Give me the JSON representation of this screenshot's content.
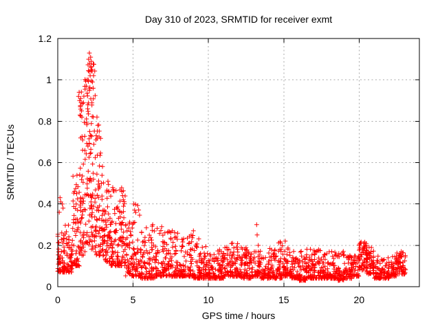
{
  "title": "Day 310 of 2023, SRMTID for receiver exmt",
  "colors": {
    "marker": "#ff0000",
    "grid": "#a8a8a8",
    "axis": "#000000",
    "background": "#ffffff"
  },
  "chart_data": {
    "type": "scatter",
    "title": "Day 310 of 2023, SRMTID for receiver exmt",
    "xlabel": "GPS time / hours",
    "ylabel": "SRMTID / TECUs",
    "xlim": [
      0,
      24
    ],
    "ylim": [
      0,
      1.2
    ],
    "grid": true,
    "legend": "none",
    "marker": {
      "shape": "plus",
      "color": "#ff0000",
      "size": 7
    },
    "xticks": [
      {
        "v": 0,
        "label": "0"
      },
      {
        "v": 5,
        "label": "5"
      },
      {
        "v": 10,
        "label": "10"
      },
      {
        "v": 15,
        "label": "15"
      },
      {
        "v": 20,
        "label": "20"
      }
    ],
    "yticks": [
      {
        "v": 0,
        "label": "0"
      },
      {
        "v": 0.2,
        "label": "0.2"
      },
      {
        "v": 0.4,
        "label": "0.4"
      },
      {
        "v": 0.6,
        "label": "0.6"
      },
      {
        "v": 0.8,
        "label": "0.8"
      },
      {
        "v": 1.0,
        "label": "1"
      },
      {
        "v": 1.2,
        "label": "1.2"
      }
    ],
    "data_extent": {
      "x_start": 0.0,
      "x_end": 23.1,
      "y_min": 0.03,
      "y_max": 1.13,
      "peak_x": 2.1
    },
    "seed": 310,
    "bins_format": [
      "x_start_hour",
      "x_end_hour",
      "point_count",
      "y_min_tecu",
      "y_max_tecu",
      "low_bias_power"
    ],
    "bins": [
      [
        0.0,
        0.5,
        60,
        0.07,
        0.28,
        2.0
      ],
      [
        0.5,
        1.0,
        55,
        0.07,
        0.3,
        2.0
      ],
      [
        1.0,
        1.5,
        60,
        0.1,
        0.55,
        1.7
      ],
      [
        1.5,
        2.0,
        80,
        0.15,
        1.02,
        1.25
      ],
      [
        2.0,
        2.5,
        90,
        0.18,
        1.08,
        1.25
      ],
      [
        2.5,
        3.0,
        65,
        0.15,
        0.8,
        1.6
      ],
      [
        3.0,
        3.5,
        60,
        0.12,
        0.55,
        1.7
      ],
      [
        3.5,
        4.0,
        60,
        0.1,
        0.5,
        1.8
      ],
      [
        4.0,
        4.5,
        55,
        0.1,
        0.5,
        1.9
      ],
      [
        4.5,
        5.0,
        50,
        0.05,
        0.32,
        2.0
      ],
      [
        5.0,
        5.5,
        46,
        0.05,
        0.4,
        2.3
      ],
      [
        5.5,
        6.0,
        46,
        0.04,
        0.3,
        2.4
      ],
      [
        6.0,
        6.5,
        46,
        0.04,
        0.3,
        2.4
      ],
      [
        6.5,
        7.0,
        46,
        0.05,
        0.3,
        2.4
      ],
      [
        7.0,
        7.5,
        46,
        0.05,
        0.27,
        2.4
      ],
      [
        7.5,
        8.0,
        46,
        0.05,
        0.27,
        2.4
      ],
      [
        8.0,
        8.5,
        46,
        0.05,
        0.26,
        2.4
      ],
      [
        8.5,
        9.0,
        46,
        0.05,
        0.26,
        2.4
      ],
      [
        9.0,
        9.5,
        46,
        0.04,
        0.24,
        2.4
      ],
      [
        9.5,
        10.0,
        46,
        0.04,
        0.2,
        2.4
      ],
      [
        10.0,
        10.5,
        46,
        0.04,
        0.16,
        2.2
      ],
      [
        10.5,
        11.0,
        46,
        0.04,
        0.18,
        2.2
      ],
      [
        11.0,
        11.5,
        46,
        0.05,
        0.2,
        2.2
      ],
      [
        11.5,
        12.0,
        46,
        0.05,
        0.22,
        2.2
      ],
      [
        12.0,
        12.5,
        46,
        0.04,
        0.19,
        2.2
      ],
      [
        12.5,
        13.0,
        46,
        0.04,
        0.18,
        2.2
      ],
      [
        13.0,
        13.5,
        46,
        0.05,
        0.2,
        2.2
      ],
      [
        13.5,
        14.0,
        46,
        0.04,
        0.18,
        2.2
      ],
      [
        14.0,
        14.5,
        46,
        0.04,
        0.2,
        2.2
      ],
      [
        14.5,
        15.0,
        46,
        0.04,
        0.22,
        2.1
      ],
      [
        15.0,
        15.5,
        46,
        0.05,
        0.21,
        2.1
      ],
      [
        15.5,
        16.0,
        46,
        0.04,
        0.18,
        2.2
      ],
      [
        16.0,
        16.5,
        46,
        0.03,
        0.18,
        2.2
      ],
      [
        16.5,
        17.0,
        46,
        0.04,
        0.19,
        2.2
      ],
      [
        17.0,
        17.5,
        46,
        0.04,
        0.18,
        2.2
      ],
      [
        17.5,
        18.0,
        46,
        0.04,
        0.16,
        2.2
      ],
      [
        18.0,
        18.5,
        46,
        0.04,
        0.17,
        2.2
      ],
      [
        18.5,
        19.0,
        46,
        0.03,
        0.19,
        2.2
      ],
      [
        19.0,
        19.5,
        46,
        0.04,
        0.16,
        2.2
      ],
      [
        19.5,
        20.0,
        46,
        0.05,
        0.15,
        2.0
      ],
      [
        20.0,
        20.5,
        52,
        0.08,
        0.22,
        1.5
      ],
      [
        20.5,
        21.0,
        52,
        0.06,
        0.2,
        1.7
      ],
      [
        21.0,
        21.5,
        46,
        0.04,
        0.15,
        2.2
      ],
      [
        21.5,
        22.0,
        46,
        0.04,
        0.14,
        2.2
      ],
      [
        22.0,
        22.5,
        46,
        0.05,
        0.16,
        2.0
      ],
      [
        22.5,
        23.1,
        55,
        0.06,
        0.17,
        1.7
      ]
    ],
    "extra_points": [
      [
        0.1,
        0.36
      ],
      [
        0.15,
        0.43
      ],
      [
        0.2,
        0.41
      ],
      [
        0.3,
        0.4
      ],
      [
        0.35,
        0.38
      ],
      [
        1.38,
        0.92
      ],
      [
        1.42,
        0.94
      ],
      [
        1.45,
        0.9
      ],
      [
        1.48,
        0.83
      ],
      [
        1.5,
        0.87
      ],
      [
        1.52,
        0.91
      ],
      [
        1.55,
        0.89
      ],
      [
        1.58,
        0.85
      ],
      [
        1.9,
        0.97
      ],
      [
        1.95,
        1.0
      ],
      [
        2.02,
        1.0
      ],
      [
        2.05,
        1.1
      ],
      [
        2.08,
        1.04
      ],
      [
        2.1,
        1.13
      ],
      [
        2.12,
        1.08
      ],
      [
        2.15,
        1.02
      ],
      [
        2.18,
        1.11
      ],
      [
        2.2,
        1.06
      ],
      [
        2.22,
        1.09
      ],
      [
        2.25,
        1.05
      ],
      [
        2.3,
        0.99
      ],
      [
        2.35,
        0.96
      ],
      [
        2.6,
        0.82
      ],
      [
        2.65,
        0.78
      ],
      [
        4.25,
        0.46
      ],
      [
        4.3,
        0.44
      ],
      [
        4.35,
        0.42
      ],
      [
        5.05,
        0.4
      ],
      [
        5.1,
        0.37
      ],
      [
        6.3,
        0.3
      ],
      [
        6.9,
        0.29
      ],
      [
        7.6,
        0.27
      ],
      [
        8.85,
        0.25
      ],
      [
        9.0,
        0.27
      ],
      [
        11.6,
        0.21
      ],
      [
        13.2,
        0.3
      ],
      [
        13.23,
        0.25
      ],
      [
        15.1,
        0.22
      ],
      [
        20.3,
        0.21
      ],
      [
        20.45,
        0.2
      ],
      [
        22.8,
        0.17
      ]
    ]
  }
}
